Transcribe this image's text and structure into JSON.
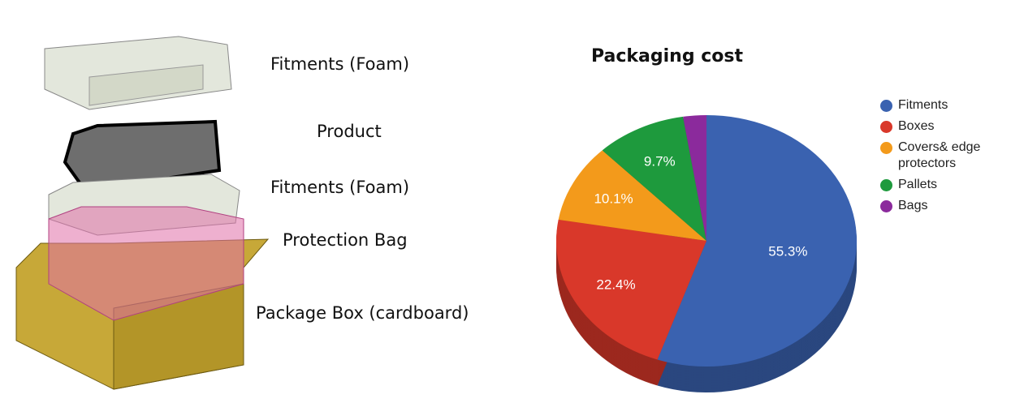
{
  "diagram": {
    "labels": [
      "Fitments (Foam)",
      "Product",
      "Fitments (Foam)",
      "Protection Bag",
      "Package Box (cardboard)"
    ]
  },
  "chart_data": {
    "type": "pie",
    "title": "Packaging cost",
    "categories": [
      "Fitments",
      "Boxes",
      "Covers& edge protectors",
      "Pallets",
      "Bags"
    ],
    "values": [
      55.3,
      22.4,
      10.1,
      9.7,
      2.5
    ],
    "value_labels": [
      "55.3%",
      "22.4%",
      "10.1%",
      "9.7%",
      null
    ],
    "colors": [
      "#3a62b0",
      "#d9382a",
      "#f39a1b",
      "#1e9a3d",
      "#8b2a9c"
    ],
    "legend": "right"
  }
}
